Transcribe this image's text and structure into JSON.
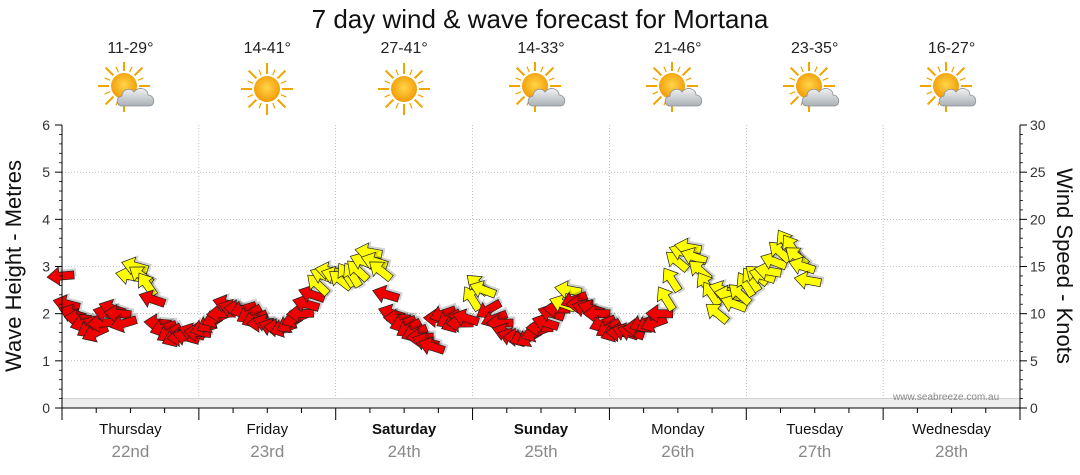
{
  "title": "7 day wind & wave forecast for Mortana",
  "attribution": "www.seabreeze.com.au",
  "colors": {
    "strong": "#ee0000",
    "moderate": "#ffff00",
    "grid": "#999999",
    "wave_area": "#eeeeee"
  },
  "days": [
    {
      "name": "Thursday",
      "date": "22nd",
      "temp": "11-29°",
      "icon": "sun-cloud-icon",
      "bold": false
    },
    {
      "name": "Friday",
      "date": "23rd",
      "temp": "14-41°",
      "icon": "sun-icon",
      "bold": false
    },
    {
      "name": "Saturday",
      "date": "24th",
      "temp": "27-41°",
      "icon": "sun-icon",
      "bold": true
    },
    {
      "name": "Sunday",
      "date": "25th",
      "temp": "14-33°",
      "icon": "sun-cloud-icon",
      "bold": true
    },
    {
      "name": "Monday",
      "date": "26th",
      "temp": "21-46°",
      "icon": "sun-cloud-icon",
      "bold": false
    },
    {
      "name": "Tuesday",
      "date": "27th",
      "temp": "23-35°",
      "icon": "sun-cloud-icon",
      "bold": false
    },
    {
      "name": "Wednesday",
      "date": "28th",
      "temp": "16-27°",
      "icon": "sun-cloud-icon",
      "bold": false
    }
  ],
  "chart_data": {
    "type": "scatter",
    "title": "7 day wind & wave forecast for Mortana",
    "ylabel_left": "Wave Height - Metres",
    "ylabel_right": "Wind Speed - Knots",
    "ylim_left": [
      0,
      6
    ],
    "ylim_right": [
      0,
      30
    ],
    "yticks_left": [
      "0",
      "1",
      "2",
      "3",
      "4",
      "5",
      "6"
    ],
    "yticks_right": [
      "0",
      "5",
      "10",
      "15",
      "20",
      "25",
      "30"
    ],
    "x_unit": "hours from Thursday 00:00",
    "xlim": [
      0,
      168
    ],
    "grid": true,
    "wave_height_m": [
      [
        0,
        0.2
      ],
      [
        12,
        0.2
      ],
      [
        24,
        0.2
      ],
      [
        36,
        0.2
      ],
      [
        48,
        0.2
      ],
      [
        60,
        0.2
      ],
      [
        72,
        0.2
      ],
      [
        84,
        0.2
      ],
      [
        96,
        0.2
      ],
      [
        108,
        0.2
      ],
      [
        120,
        0.2
      ],
      [
        132,
        0.2
      ],
      [
        144,
        0.2
      ],
      [
        156,
        0.2
      ],
      [
        168,
        0.2
      ]
    ],
    "wind_knots": [
      [
        0,
        14.0
      ],
      [
        1,
        11.0
      ],
      [
        2,
        10.0
      ],
      [
        3,
        9.5
      ],
      [
        4,
        9.0
      ],
      [
        5,
        8.5
      ],
      [
        6,
        8.0
      ],
      [
        7,
        9.0
      ],
      [
        8,
        10.0
      ],
      [
        9,
        10.5
      ],
      [
        10,
        10.0
      ],
      [
        11,
        9.0
      ],
      [
        12,
        14.0
      ],
      [
        13,
        15.0
      ],
      [
        14,
        14.0
      ],
      [
        15,
        13.0
      ],
      [
        16,
        11.5
      ],
      [
        17,
        9.0
      ],
      [
        18,
        8.5
      ],
      [
        19,
        8.0
      ],
      [
        20,
        7.5
      ],
      [
        21,
        7.5
      ],
      [
        22,
        7.5
      ],
      [
        23,
        8.0
      ],
      [
        24,
        8.0
      ],
      [
        25,
        8.5
      ],
      [
        26,
        9.0
      ],
      [
        27,
        9.5
      ],
      [
        28,
        10.0
      ],
      [
        29,
        11.0
      ],
      [
        30,
        10.5
      ],
      [
        31,
        10.5
      ],
      [
        32,
        10.5
      ],
      [
        33,
        10.0
      ],
      [
        34,
        9.5
      ],
      [
        35,
        9.0
      ],
      [
        36,
        9.0
      ],
      [
        37,
        8.5
      ],
      [
        38,
        8.5
      ],
      [
        39,
        8.5
      ],
      [
        40,
        9.0
      ],
      [
        41,
        9.5
      ],
      [
        42,
        10.0
      ],
      [
        43,
        11.0
      ],
      [
        44,
        12.0
      ],
      [
        45,
        13.0
      ],
      [
        46,
        14.0
      ],
      [
        47,
        14.5
      ],
      [
        48,
        14.0
      ],
      [
        49,
        13.5
      ],
      [
        50,
        14.0
      ],
      [
        51,
        14.0
      ],
      [
        52,
        14.5
      ],
      [
        53,
        15.5
      ],
      [
        54,
        16.5
      ],
      [
        55,
        15.5
      ],
      [
        56,
        14.5
      ],
      [
        57,
        12.0
      ],
      [
        58,
        10.0
      ],
      [
        59,
        9.5
      ],
      [
        60,
        9.0
      ],
      [
        61,
        8.5
      ],
      [
        62,
        8.0
      ],
      [
        63,
        7.5
      ],
      [
        64,
        7.0
      ],
      [
        65,
        6.5
      ],
      [
        66,
        9.5
      ],
      [
        67,
        10.0
      ],
      [
        68,
        9.5
      ],
      [
        69,
        9.0
      ],
      [
        70,
        9.0
      ],
      [
        71,
        9.5
      ],
      [
        72,
        11.5
      ],
      [
        73,
        13.0
      ],
      [
        74,
        12.5
      ],
      [
        75,
        10.5
      ],
      [
        76,
        9.5
      ],
      [
        77,
        9.0
      ],
      [
        78,
        8.0
      ],
      [
        79,
        7.5
      ],
      [
        80,
        7.5
      ],
      [
        81,
        7.5
      ],
      [
        82,
        7.5
      ],
      [
        83,
        8.0
      ],
      [
        84,
        8.5
      ],
      [
        85,
        9.0
      ],
      [
        86,
        10.0
      ],
      [
        87,
        10.5
      ],
      [
        88,
        11.0
      ],
      [
        89,
        12.5
      ],
      [
        90,
        11.5
      ],
      [
        91,
        11.0
      ],
      [
        92,
        10.5
      ],
      [
        93,
        10.5
      ],
      [
        94,
        10.0
      ],
      [
        95,
        9.0
      ],
      [
        96,
        8.5
      ],
      [
        97,
        8.0
      ],
      [
        98,
        8.0
      ],
      [
        99,
        8.0
      ],
      [
        100,
        8.0
      ],
      [
        101,
        8.5
      ],
      [
        102,
        9.0
      ],
      [
        103,
        9.0
      ],
      [
        104,
        9.0
      ],
      [
        105,
        10.0
      ],
      [
        106,
        11.5
      ],
      [
        107,
        13.5
      ],
      [
        108,
        15.5
      ],
      [
        109,
        16.5
      ],
      [
        110,
        17.0
      ],
      [
        111,
        16.0
      ],
      [
        112,
        14.5
      ],
      [
        113,
        13.0
      ],
      [
        114,
        12.0
      ],
      [
        115,
        10.0
      ],
      [
        116,
        12.5
      ],
      [
        117,
        12.0
      ],
      [
        118,
        11.0
      ],
      [
        119,
        12.0
      ],
      [
        120,
        13.0
      ],
      [
        121,
        13.5
      ],
      [
        122,
        14.0
      ],
      [
        123,
        14.0
      ],
      [
        124,
        14.5
      ],
      [
        125,
        15.5
      ],
      [
        126,
        16.5
      ],
      [
        127,
        17.5
      ],
      [
        128,
        17.0
      ],
      [
        129,
        16.0
      ],
      [
        130,
        15.0
      ],
      [
        131,
        13.5
      ]
    ],
    "wind_threshold_knots": 15,
    "x_labels": [
      {
        "day": "Thursday",
        "date": "22nd"
      },
      {
        "day": "Friday",
        "date": "23rd"
      },
      {
        "day": "Saturday",
        "date": "24th"
      },
      {
        "day": "Sunday",
        "date": "25th"
      },
      {
        "day": "Monday",
        "date": "26th"
      },
      {
        "day": "Tuesday",
        "date": "27th"
      },
      {
        "day": "Wednesday",
        "date": "28th"
      }
    ]
  }
}
